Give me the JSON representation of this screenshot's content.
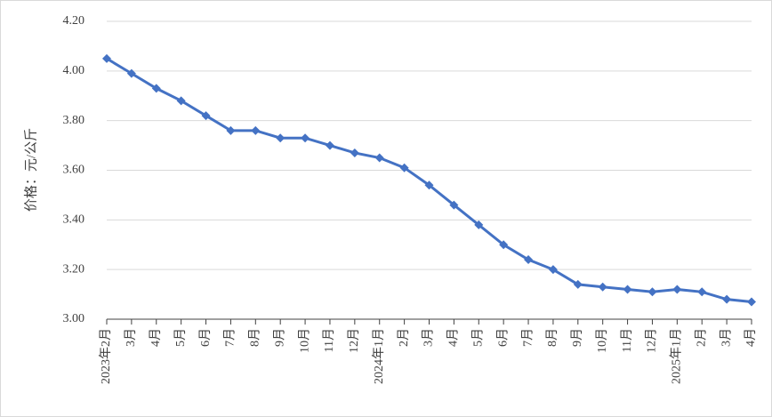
{
  "chart_data": {
    "type": "line",
    "y_label": "价格：元/公斤",
    "categories": [
      "2023年2月",
      "3月",
      "4月",
      "5月",
      "6月",
      "7月",
      "8月",
      "9月",
      "10月",
      "11月",
      "12月",
      "2024年1月",
      "2月",
      "3月",
      "4月",
      "5月",
      "6月",
      "7月",
      "8月",
      "9月",
      "10月",
      "11月",
      "12月",
      "2025年1月",
      "2月",
      "3月",
      "4月"
    ],
    "values": [
      4.05,
      3.99,
      3.93,
      3.88,
      3.82,
      3.76,
      3.76,
      3.73,
      3.73,
      3.7,
      3.67,
      3.65,
      3.61,
      3.54,
      3.46,
      3.38,
      3.3,
      3.24,
      3.2,
      3.14,
      3.13,
      3.12,
      3.11,
      3.12,
      3.11,
      3.08,
      3.07
    ],
    "color": "#4472c4",
    "ylim": [
      3,
      4.2
    ],
    "yticks": [
      {
        "value": 3,
        "label": "3.00"
      },
      {
        "value": 3.2,
        "label": "3.20"
      },
      {
        "value": 3.4,
        "label": "3.40"
      },
      {
        "value": 3.6,
        "label": "3.60"
      },
      {
        "value": 3.8,
        "label": "3.80"
      },
      {
        "value": 4,
        "label": "4.00"
      },
      {
        "value": 4.2,
        "label": "4.20"
      }
    ],
    "grid": true
  }
}
